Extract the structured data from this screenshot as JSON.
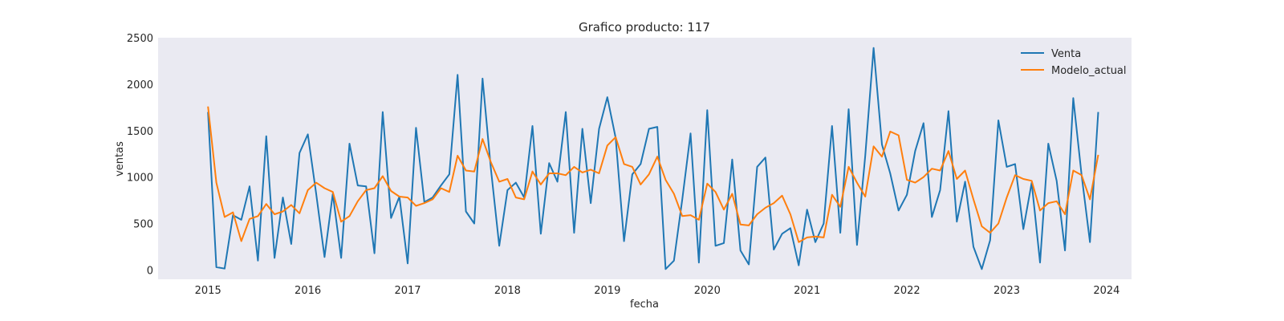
{
  "chart_data": {
    "type": "line",
    "title": "Grafico producto: 117",
    "xlabel": "fecha",
    "ylabel": "ventas",
    "xlim": [
      "2014-07-01",
      "2024-04-01"
    ],
    "ylim": [
      -100,
      2500
    ],
    "xticks": [
      "2015",
      "2016",
      "2017",
      "2018",
      "2019",
      "2020",
      "2021",
      "2022",
      "2023",
      "2024"
    ],
    "yticks": [
      "0",
      "500",
      "1000",
      "1500",
      "2000",
      "2500"
    ],
    "grid": false,
    "background": "#eaeaf2",
    "legend_position": "upper right",
    "x": [
      "2015-01",
      "2015-02",
      "2015-03",
      "2015-04",
      "2015-05",
      "2015-06",
      "2015-07",
      "2015-08",
      "2015-09",
      "2015-10",
      "2015-11",
      "2015-12",
      "2016-01",
      "2016-02",
      "2016-03",
      "2016-04",
      "2016-05",
      "2016-06",
      "2016-07",
      "2016-08",
      "2016-09",
      "2016-10",
      "2016-11",
      "2016-12",
      "2017-01",
      "2017-02",
      "2017-03",
      "2017-04",
      "2017-05",
      "2017-06",
      "2017-07",
      "2017-08",
      "2017-09",
      "2017-10",
      "2017-11",
      "2017-12",
      "2018-01",
      "2018-02",
      "2018-03",
      "2018-04",
      "2018-05",
      "2018-06",
      "2018-07",
      "2018-08",
      "2018-09",
      "2018-10",
      "2018-11",
      "2018-12",
      "2019-01",
      "2019-02",
      "2019-03",
      "2019-04",
      "2019-05",
      "2019-06",
      "2019-07",
      "2019-08",
      "2019-09",
      "2019-10",
      "2019-11",
      "2019-12",
      "2020-01",
      "2020-02",
      "2020-03",
      "2020-04",
      "2020-05",
      "2020-06",
      "2020-07",
      "2020-08",
      "2020-09",
      "2020-10",
      "2020-11",
      "2020-12",
      "2021-01",
      "2021-02",
      "2021-03",
      "2021-04",
      "2021-05",
      "2021-06",
      "2021-07",
      "2021-08",
      "2021-09",
      "2021-10",
      "2021-11",
      "2021-12",
      "2022-01",
      "2022-02",
      "2022-03",
      "2022-04",
      "2022-05",
      "2022-06",
      "2022-07",
      "2022-08",
      "2022-09",
      "2022-10",
      "2022-11",
      "2022-12",
      "2023-01",
      "2023-02",
      "2023-03",
      "2023-04",
      "2023-05",
      "2023-06",
      "2023-07",
      "2023-08",
      "2023-09",
      "2023-10",
      "2023-11",
      "2023-12"
    ],
    "series": [
      {
        "name": "Venta",
        "color": "#1f77b4",
        "values": [
          1700,
          30,
          15,
          590,
          540,
          900,
          100,
          1440,
          130,
          780,
          280,
          1260,
          1460,
          820,
          140,
          820,
          130,
          1360,
          910,
          900,
          180,
          1700,
          560,
          790,
          70,
          1530,
          730,
          780,
          910,
          1030,
          2100,
          630,
          500,
          2060,
          1090,
          260,
          860,
          940,
          780,
          1550,
          390,
          1150,
          950,
          1700,
          400,
          1520,
          720,
          1520,
          1860,
          1420,
          310,
          1030,
          1140,
          1520,
          1540,
          10,
          100,
          760,
          1470,
          80,
          1720,
          260,
          290,
          1190,
          210,
          60,
          1110,
          1210,
          220,
          390,
          450,
          50,
          650,
          300,
          500,
          1550,
          400,
          1730,
          270,
          1230,
          2390,
          1350,
          1040,
          640,
          810,
          1280,
          1580,
          570,
          860,
          1710,
          520,
          950,
          250,
          10,
          320,
          1610,
          1110,
          1140,
          440,
          940,
          80,
          1360,
          960,
          210,
          1850,
          1020,
          300,
          1700
        ]
      },
      {
        "name": "Modelo_actual",
        "color": "#ff7f0e",
        "values": [
          1760,
          940,
          570,
          620,
          310,
          550,
          580,
          710,
          600,
          630,
          700,
          610,
          860,
          940,
          880,
          840,
          520,
          580,
          740,
          860,
          880,
          1010,
          850,
          790,
          780,
          690,
          720,
          760,
          880,
          840,
          1230,
          1070,
          1060,
          1410,
          1160,
          950,
          980,
          780,
          760,
          1060,
          920,
          1040,
          1040,
          1020,
          1110,
          1050,
          1080,
          1040,
          1340,
          1430,
          1140,
          1110,
          920,
          1030,
          1220,
          970,
          820,
          580,
          590,
          540,
          930,
          840,
          650,
          820,
          490,
          480,
          600,
          670,
          720,
          800,
          600,
          300,
          350,
          360,
          350,
          810,
          680,
          1110,
          940,
          790,
          1330,
          1220,
          1490,
          1450,
          970,
          940,
          1000,
          1090,
          1070,
          1280,
          980,
          1070,
          760,
          470,
          400,
          500,
          780,
          1020,
          980,
          960,
          640,
          720,
          740,
          600,
          1070,
          1020,
          760,
          1240
        ]
      }
    ]
  }
}
